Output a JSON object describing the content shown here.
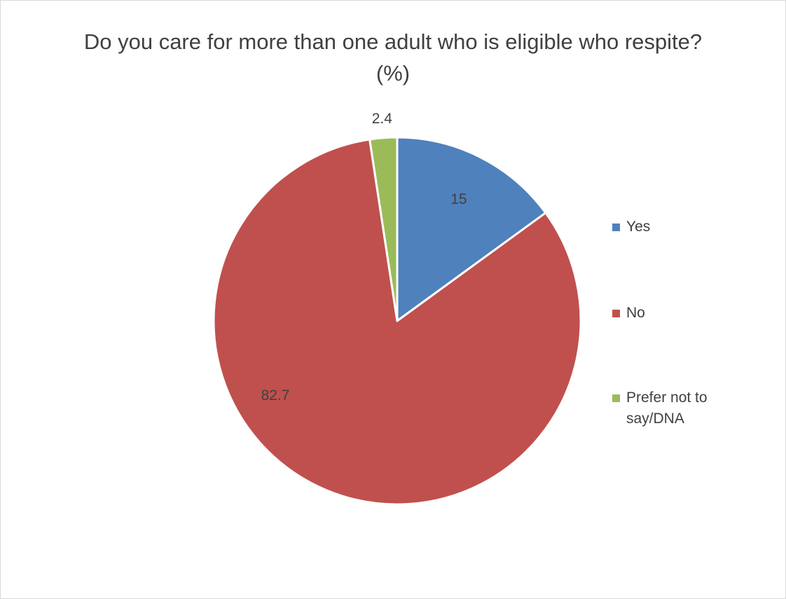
{
  "chart_data": {
    "type": "pie",
    "title": "Do you care for more than one adult who is eligible who respite? (%)",
    "categories": [
      "Yes",
      "No",
      "Prefer not to say/DNA"
    ],
    "values": [
      15,
      82.7,
      2.4
    ],
    "data_labels": [
      "15",
      "82.7",
      "2.4"
    ],
    "colors": [
      "#4f81bd",
      "#c0504d",
      "#9bbb59"
    ],
    "legend_position": "right",
    "start_angle": "12 o'clock",
    "direction": "clockwise"
  }
}
